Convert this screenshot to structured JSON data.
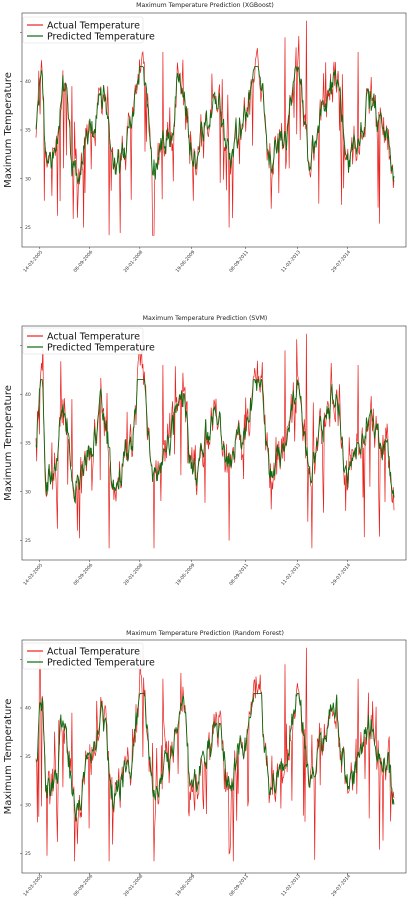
{
  "chart_data": [
    {
      "type": "line",
      "title": "Maximum Temperature Prediction (XGBoost)",
      "ylabel": "Maximum Temperature",
      "xlabel": "",
      "ylim": [
        23,
        47
      ],
      "yticks": [
        25,
        30,
        35,
        40,
        45
      ],
      "xticks": [
        "14-03-2005",
        "06-09-2006",
        "28-01-2008",
        "19-06-2009",
        "08-09-2011",
        "11-02-2013",
        "29-07-2014"
      ],
      "legend": [
        "Actual Temperature",
        "Predicted Temperature"
      ],
      "legend_position": "top-left",
      "grid": false,
      "series": [
        {
          "name": "Actual Temperature",
          "color": "#e8221e",
          "envelope": [
            [
              0,
              35.5
            ],
            [
              0.15,
              40.8
            ],
            [
              0.3,
              31
            ],
            [
              0.55,
              33
            ],
            [
              0.75,
              39.2
            ],
            [
              1.1,
              30
            ],
            [
              1.55,
              35
            ],
            [
              1.85,
              38.8
            ],
            [
              2.2,
              30.5
            ],
            [
              2.6,
              34
            ],
            [
              2.95,
              42.2
            ],
            [
              3.3,
              31.5
            ],
            [
              3.7,
              34
            ],
            [
              4.05,
              40.6
            ],
            [
              4.4,
              32
            ],
            [
              4.75,
              35.8
            ],
            [
              5.05,
              38.2
            ],
            [
              5.4,
              32.5
            ],
            [
              5.8,
              36
            ],
            [
              6.2,
              42.1
            ],
            [
              6.55,
              32
            ],
            [
              6.95,
              34.5
            ],
            [
              7.3,
              41
            ],
            [
              7.65,
              32.5
            ],
            [
              8.05,
              37
            ],
            [
              8.35,
              40.2
            ],
            [
              8.7,
              32
            ],
            [
              9.0,
              34
            ],
            [
              9.3,
              37.7
            ],
            [
              9.8,
              34.5
            ],
            [
              10.0,
              30.8
            ]
          ],
          "max_label": "46.2"
        },
        {
          "name": "Predicted Temperature",
          "color": "#0f6b0f"
        }
      ]
    },
    {
      "type": "line",
      "title": "Maximum Temperature Prediction (SVM)",
      "ylabel": "Maximum Temperature",
      "xlabel": "",
      "ylim": [
        23,
        47
      ],
      "yticks": [
        25,
        30,
        35,
        40,
        45
      ],
      "xticks": [
        "14-03-2005",
        "06-09-2006",
        "28-01-2008",
        "19-06-2009",
        "08-09-2011",
        "11-02-2013",
        "29-07-2014"
      ],
      "legend": [
        "Actual Temperature",
        "Predicted Temperature"
      ],
      "legend_position": "top-left",
      "grid": false,
      "series": [
        {
          "name": "Actual Temperature",
          "color": "#e8221e",
          "envelope": [
            [
              0,
              35.5
            ],
            [
              0.15,
              40.8
            ],
            [
              0.3,
              31
            ],
            [
              0.55,
              33
            ],
            [
              0.75,
              39.2
            ],
            [
              1.1,
              30
            ],
            [
              1.55,
              35
            ],
            [
              1.85,
              38.8
            ],
            [
              2.2,
              30.5
            ],
            [
              2.6,
              34
            ],
            [
              2.95,
              42.2
            ],
            [
              3.3,
              31.5
            ],
            [
              3.7,
              34
            ],
            [
              4.05,
              40.6
            ],
            [
              4.4,
              32
            ],
            [
              4.75,
              35.8
            ],
            [
              5.05,
              38.2
            ],
            [
              5.4,
              32.5
            ],
            [
              5.8,
              36
            ],
            [
              6.2,
              42.1
            ],
            [
              6.55,
              32
            ],
            [
              6.95,
              34.5
            ],
            [
              7.3,
              41
            ],
            [
              7.65,
              32.5
            ],
            [
              8.05,
              37
            ],
            [
              8.35,
              40.2
            ],
            [
              8.7,
              32
            ],
            [
              9.0,
              34
            ],
            [
              9.3,
              37.7
            ],
            [
              9.8,
              34.5
            ],
            [
              10.0,
              30.8
            ]
          ]
        },
        {
          "name": "Predicted Temperature",
          "color": "#0f6b0f"
        }
      ]
    },
    {
      "type": "line",
      "title": "Maximum Temperature Prediction (Random Forest)",
      "ylabel": "Maximum Temperature",
      "xlabel": "",
      "ylim": [
        23,
        47
      ],
      "yticks": [
        25,
        30,
        35,
        40,
        45
      ],
      "xticks": [
        "14-03-2005",
        "06-09-2006",
        "28-01-2008",
        "19-06-2009",
        "08-09-2011",
        "11-02-2013",
        "29-07-2014"
      ],
      "legend": [
        "Actual Temperature",
        "Predicted Temperature"
      ],
      "legend_position": "top-left",
      "grid": false,
      "series": [
        {
          "name": "Actual Temperature",
          "color": "#e8221e",
          "envelope": [
            [
              0,
              35.5
            ],
            [
              0.15,
              40.8
            ],
            [
              0.3,
              31
            ],
            [
              0.55,
              33
            ],
            [
              0.75,
              39.2
            ],
            [
              1.1,
              30
            ],
            [
              1.55,
              35
            ],
            [
              1.85,
              38.8
            ],
            [
              2.2,
              30.5
            ],
            [
              2.6,
              34
            ],
            [
              2.95,
              42.2
            ],
            [
              3.3,
              31.5
            ],
            [
              3.7,
              34
            ],
            [
              4.05,
              40.6
            ],
            [
              4.4,
              32
            ],
            [
              4.75,
              35.8
            ],
            [
              5.05,
              38.2
            ],
            [
              5.4,
              32.5
            ],
            [
              5.8,
              36
            ],
            [
              6.2,
              42.1
            ],
            [
              6.55,
              32
            ],
            [
              6.95,
              34.5
            ],
            [
              7.3,
              41
            ],
            [
              7.65,
              32.5
            ],
            [
              8.05,
              37
            ],
            [
              8.35,
              40.2
            ],
            [
              8.7,
              32
            ],
            [
              9.0,
              34
            ],
            [
              9.3,
              37.7
            ],
            [
              9.8,
              34.5
            ],
            [
              10.0,
              30.8
            ]
          ]
        },
        {
          "name": "Predicted Temperature",
          "color": "#0f6b0f"
        }
      ]
    }
  ]
}
